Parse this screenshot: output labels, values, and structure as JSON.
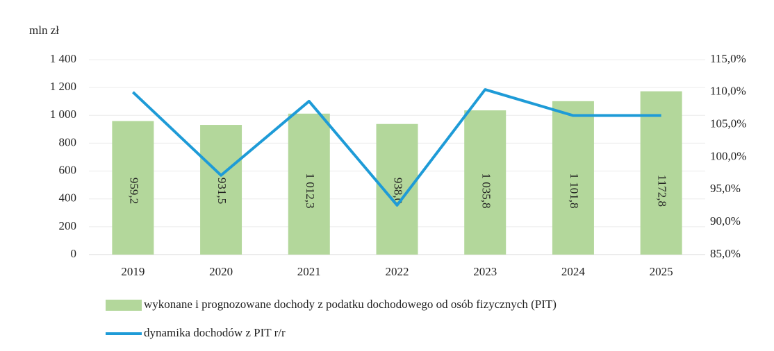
{
  "chart_data": {
    "type": "bar_line",
    "y_label": "mln zł",
    "categories": [
      "2019",
      "2020",
      "2021",
      "2022",
      "2023",
      "2024",
      "2025"
    ],
    "series": [
      {
        "name": "wykonane i prognozowane dochody z podatku dochodowego od osób fizycznych (PIT)",
        "type": "bar",
        "color": "#b3d79b",
        "values": [
          959.2,
          931.5,
          1012.3,
          938.0,
          1035.8,
          1101.8,
          1172.8
        ],
        "value_labels": [
          "959,2",
          "931,5",
          "1 012,3",
          "938,0",
          "1 035,8",
          "1 101,8",
          "1172,8"
        ]
      },
      {
        "name": "dynamika dochodów z PIT r/r",
        "type": "line",
        "axis": "y2",
        "color": "#1e9bd7",
        "values": [
          110.0,
          97.2,
          108.6,
          92.6,
          110.4,
          106.4,
          106.4
        ]
      }
    ],
    "ylim": [
      0,
      1400
    ],
    "yticks": [
      0,
      200,
      400,
      600,
      800,
      {
        "value": 1000,
        "label": "1 000"
      },
      {
        "value": 1200,
        "label": "1 200"
      },
      {
        "value": 1400,
        "label": "1 400"
      }
    ],
    "y2lim": [
      85,
      115
    ],
    "y2ticks": [
      {
        "value": 85,
        "label": "85,0%"
      },
      {
        "value": 90,
        "label": "90,0%"
      },
      {
        "value": 95,
        "label": "95,0%"
      },
      {
        "value": 100,
        "label": "100,0%"
      },
      {
        "value": 105,
        "label": "105,0%"
      },
      {
        "value": 110,
        "label": "110,0%"
      },
      {
        "value": 115,
        "label": "115,0%"
      }
    ],
    "grid": true,
    "legend": "bottom"
  }
}
